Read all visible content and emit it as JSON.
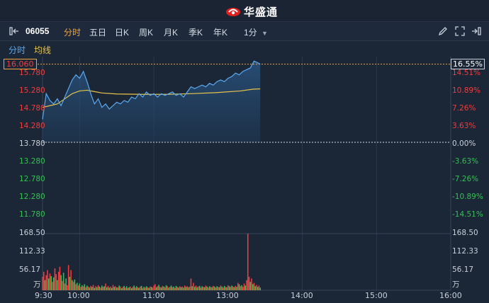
{
  "brand": {
    "name": "华盛通"
  },
  "toolbar": {
    "code": "06055",
    "tabs": [
      "分时",
      "五日",
      "日K",
      "周K",
      "月K",
      "季K",
      "年K"
    ],
    "active_tab": "分时",
    "interval": "1分"
  },
  "subbar": {
    "items": [
      "分时",
      "均线"
    ]
  },
  "price_axis": {
    "current": "16.060",
    "left": [
      "15.780",
      "15.280",
      "14.780",
      "14.280",
      "13.780",
      "13.280",
      "12.780",
      "12.280",
      "11.780"
    ],
    "right_current": "16.55%",
    "right": [
      "14.51%",
      "10.89%",
      "7.26%",
      "3.63%",
      "0.00%",
      "-3.63%",
      "-7.26%",
      "-10.89%",
      "-14.51%"
    ]
  },
  "volume_axis": {
    "left": [
      "168.50",
      "112.33",
      "56.17",
      "万"
    ],
    "right": [
      "168.50",
      "112.33",
      "56.17",
      "万"
    ]
  },
  "time_axis": [
    "9:30",
    "10:00",
    "11:00",
    "13:00",
    "14:00",
    "15:00",
    "16:00"
  ],
  "colors": {
    "up": "#f23d3d",
    "down": "#33c152",
    "price_line": "#5aa9f0",
    "avg_line": "#e8c54a",
    "accent": "#f3a43a"
  },
  "chart_data": {
    "type": "line",
    "prev_close": 13.78,
    "ylim": [
      11.53,
      16.28
    ],
    "price": [
      [
        0,
        14.45
      ],
      [
        3,
        15.2
      ],
      [
        6,
        15.0
      ],
      [
        9,
        14.9
      ],
      [
        12,
        15.05
      ],
      [
        15,
        14.85
      ],
      [
        18,
        15.1
      ],
      [
        21,
        15.35
      ],
      [
        24,
        15.6
      ],
      [
        27,
        15.75
      ],
      [
        30,
        15.65
      ],
      [
        33,
        15.85
      ],
      [
        36,
        15.55
      ],
      [
        39,
        15.2
      ],
      [
        42,
        14.9
      ],
      [
        45,
        15.05
      ],
      [
        48,
        14.8
      ],
      [
        51,
        14.9
      ],
      [
        54,
        14.75
      ],
      [
        57,
        14.85
      ],
      [
        60,
        14.95
      ],
      [
        63,
        14.9
      ],
      [
        66,
        15.0
      ],
      [
        69,
        14.95
      ],
      [
        72,
        15.1
      ],
      [
        75,
        15.05
      ],
      [
        78,
        15.2
      ],
      [
        81,
        15.1
      ],
      [
        84,
        15.25
      ],
      [
        87,
        15.15
      ],
      [
        90,
        15.2
      ],
      [
        93,
        15.1
      ],
      [
        96,
        15.2
      ],
      [
        99,
        15.15
      ],
      [
        102,
        15.2
      ],
      [
        105,
        15.25
      ],
      [
        108,
        15.15
      ],
      [
        111,
        15.2
      ],
      [
        114,
        15.1
      ],
      [
        117,
        15.25
      ],
      [
        120,
        15.4
      ],
      [
        123,
        15.35
      ],
      [
        126,
        15.4
      ],
      [
        129,
        15.45
      ],
      [
        132,
        15.4
      ],
      [
        135,
        15.5
      ],
      [
        138,
        15.45
      ],
      [
        141,
        15.55
      ],
      [
        144,
        15.6
      ],
      [
        147,
        15.55
      ],
      [
        150,
        15.65
      ],
      [
        153,
        15.7
      ],
      [
        156,
        15.8
      ],
      [
        159,
        15.75
      ],
      [
        162,
        15.85
      ],
      [
        165,
        15.9
      ],
      [
        168,
        15.95
      ],
      [
        171,
        16.15
      ],
      [
        174,
        16.1
      ],
      [
        176,
        16.06
      ]
    ],
    "avg": [
      [
        0,
        14.8
      ],
      [
        6,
        14.85
      ],
      [
        12,
        14.9
      ],
      [
        18,
        15.05
      ],
      [
        24,
        15.2
      ],
      [
        30,
        15.28
      ],
      [
        36,
        15.3
      ],
      [
        42,
        15.26
      ],
      [
        48,
        15.22
      ],
      [
        60,
        15.19
      ],
      [
        80,
        15.18
      ],
      [
        100,
        15.18
      ],
      [
        120,
        15.2
      ],
      [
        140,
        15.23
      ],
      [
        160,
        15.28
      ],
      [
        170,
        15.33
      ],
      [
        176,
        15.34
      ]
    ],
    "volume": [
      [
        0,
        40,
        "up"
      ],
      [
        1,
        55,
        "up"
      ],
      [
        2,
        30,
        "down"
      ],
      [
        3,
        45,
        "up"
      ],
      [
        4,
        60,
        "up"
      ],
      [
        5,
        35,
        "down"
      ],
      [
        6,
        50,
        "up"
      ],
      [
        7,
        42,
        "down"
      ],
      [
        8,
        25,
        "up"
      ],
      [
        9,
        38,
        "down"
      ],
      [
        10,
        65,
        "up"
      ],
      [
        11,
        48,
        "up"
      ],
      [
        12,
        30,
        "down"
      ],
      [
        13,
        55,
        "up"
      ],
      [
        14,
        70,
        "up"
      ],
      [
        15,
        45,
        "down"
      ],
      [
        16,
        28,
        "up"
      ],
      [
        17,
        52,
        "down"
      ],
      [
        18,
        20,
        "up"
      ],
      [
        19,
        35,
        "down"
      ],
      [
        20,
        15,
        "up"
      ],
      [
        21,
        75,
        "up"
      ],
      [
        22,
        40,
        "down"
      ],
      [
        23,
        60,
        "up"
      ],
      [
        24,
        30,
        "down"
      ],
      [
        25,
        25,
        "up"
      ],
      [
        26,
        32,
        "down"
      ],
      [
        27,
        18,
        "up"
      ],
      [
        28,
        22,
        "down"
      ],
      [
        29,
        14,
        "up"
      ],
      [
        30,
        20,
        "down"
      ],
      [
        31,
        10,
        "up"
      ],
      [
        32,
        15,
        "down"
      ],
      [
        33,
        12,
        "up"
      ],
      [
        34,
        18,
        "down"
      ],
      [
        35,
        9,
        "up"
      ],
      [
        36,
        14,
        "down"
      ],
      [
        37,
        11,
        "up"
      ],
      [
        38,
        8,
        "down"
      ],
      [
        39,
        13,
        "up"
      ],
      [
        40,
        10,
        "down"
      ],
      [
        41,
        16,
        "up"
      ],
      [
        42,
        7,
        "down"
      ],
      [
        43,
        12,
        "up"
      ],
      [
        44,
        9,
        "down"
      ],
      [
        45,
        15,
        "up"
      ],
      [
        46,
        11,
        "down"
      ],
      [
        47,
        8,
        "up"
      ],
      [
        48,
        14,
        "down"
      ],
      [
        49,
        10,
        "up"
      ],
      [
        50,
        12,
        "down"
      ],
      [
        51,
        20,
        "up"
      ],
      [
        52,
        9,
        "down"
      ],
      [
        53,
        13,
        "up"
      ],
      [
        54,
        8,
        "down"
      ],
      [
        55,
        11,
        "up"
      ],
      [
        56,
        7,
        "down"
      ],
      [
        57,
        16,
        "up"
      ],
      [
        58,
        10,
        "down"
      ],
      [
        59,
        12,
        "up"
      ],
      [
        60,
        8,
        "down"
      ],
      [
        61,
        9,
        "up"
      ],
      [
        62,
        14,
        "down"
      ],
      [
        63,
        11,
        "up"
      ],
      [
        64,
        6,
        "down"
      ],
      [
        65,
        10,
        "up"
      ],
      [
        66,
        13,
        "down"
      ],
      [
        67,
        8,
        "up"
      ],
      [
        68,
        12,
        "down"
      ],
      [
        69,
        7,
        "up"
      ],
      [
        70,
        9,
        "down"
      ],
      [
        71,
        11,
        "up"
      ],
      [
        72,
        6,
        "down"
      ],
      [
        73,
        10,
        "up"
      ],
      [
        74,
        14,
        "down"
      ],
      [
        75,
        8,
        "up"
      ],
      [
        76,
        12,
        "down"
      ],
      [
        77,
        9,
        "up"
      ],
      [
        78,
        7,
        "down"
      ],
      [
        79,
        11,
        "up"
      ],
      [
        80,
        13,
        "down"
      ],
      [
        81,
        6,
        "up"
      ],
      [
        82,
        10,
        "down"
      ],
      [
        83,
        8,
        "up"
      ],
      [
        84,
        12,
        "down"
      ],
      [
        85,
        9,
        "up"
      ],
      [
        86,
        7,
        "down"
      ],
      [
        87,
        11,
        "up"
      ],
      [
        88,
        10,
        "down"
      ],
      [
        89,
        8,
        "up"
      ],
      [
        90,
        14,
        "up"
      ],
      [
        91,
        18,
        "up"
      ],
      [
        92,
        9,
        "down"
      ],
      [
        93,
        12,
        "up"
      ],
      [
        94,
        16,
        "down"
      ],
      [
        95,
        10,
        "up"
      ],
      [
        96,
        8,
        "down"
      ],
      [
        97,
        13,
        "up"
      ],
      [
        98,
        11,
        "down"
      ],
      [
        99,
        9,
        "up"
      ],
      [
        100,
        15,
        "down"
      ],
      [
        101,
        12,
        "up"
      ],
      [
        102,
        8,
        "down"
      ],
      [
        103,
        10,
        "up"
      ],
      [
        104,
        14,
        "down"
      ],
      [
        105,
        9,
        "up"
      ],
      [
        106,
        11,
        "down"
      ],
      [
        107,
        7,
        "up"
      ],
      [
        108,
        13,
        "down"
      ],
      [
        109,
        10,
        "up"
      ],
      [
        110,
        8,
        "down"
      ],
      [
        111,
        12,
        "up"
      ],
      [
        112,
        9,
        "down"
      ],
      [
        113,
        11,
        "up"
      ],
      [
        114,
        8,
        "down"
      ],
      [
        115,
        14,
        "up"
      ],
      [
        116,
        10,
        "down"
      ],
      [
        117,
        12,
        "up"
      ],
      [
        118,
        9,
        "down"
      ],
      [
        119,
        11,
        "up"
      ],
      [
        120,
        35,
        "up"
      ],
      [
        121,
        12,
        "down"
      ],
      [
        122,
        22,
        "up"
      ],
      [
        123,
        10,
        "down"
      ],
      [
        124,
        14,
        "up"
      ],
      [
        125,
        9,
        "down"
      ],
      [
        126,
        11,
        "up"
      ],
      [
        127,
        13,
        "down"
      ],
      [
        128,
        8,
        "up"
      ],
      [
        129,
        12,
        "down"
      ],
      [
        130,
        10,
        "up"
      ],
      [
        131,
        9,
        "down"
      ],
      [
        132,
        14,
        "up"
      ],
      [
        133,
        11,
        "down"
      ],
      [
        134,
        8,
        "up"
      ],
      [
        135,
        12,
        "down"
      ],
      [
        136,
        10,
        "up"
      ],
      [
        137,
        9,
        "down"
      ],
      [
        138,
        13,
        "up"
      ],
      [
        139,
        11,
        "down"
      ],
      [
        140,
        8,
        "up"
      ],
      [
        141,
        12,
        "down"
      ],
      [
        142,
        10,
        "up"
      ],
      [
        143,
        9,
        "down"
      ],
      [
        144,
        14,
        "up"
      ],
      [
        145,
        11,
        "down"
      ],
      [
        146,
        8,
        "up"
      ],
      [
        147,
        13,
        "down"
      ],
      [
        148,
        10,
        "up"
      ],
      [
        149,
        9,
        "down"
      ],
      [
        150,
        15,
        "up"
      ],
      [
        151,
        12,
        "down"
      ],
      [
        152,
        10,
        "up"
      ],
      [
        153,
        14,
        "down"
      ],
      [
        154,
        11,
        "up"
      ],
      [
        155,
        9,
        "down"
      ],
      [
        156,
        13,
        "up"
      ],
      [
        157,
        10,
        "down"
      ],
      [
        158,
        22,
        "up"
      ],
      [
        159,
        18,
        "down"
      ],
      [
        160,
        12,
        "up"
      ],
      [
        161,
        15,
        "down"
      ],
      [
        162,
        10,
        "up"
      ],
      [
        163,
        20,
        "up"
      ],
      [
        164,
        14,
        "down"
      ],
      [
        165,
        30,
        "up"
      ],
      [
        166,
        168,
        "up"
      ],
      [
        167,
        40,
        "up"
      ],
      [
        168,
        25,
        "down"
      ],
      [
        169,
        35,
        "up"
      ],
      [
        170,
        18,
        "down"
      ],
      [
        171,
        22,
        "up"
      ],
      [
        172,
        12,
        "down"
      ],
      [
        173,
        16,
        "up"
      ],
      [
        174,
        10,
        "down"
      ],
      [
        175,
        14,
        "up"
      ],
      [
        176,
        8,
        "down"
      ]
    ],
    "volume_max": 168.5,
    "session_minutes": 330
  }
}
